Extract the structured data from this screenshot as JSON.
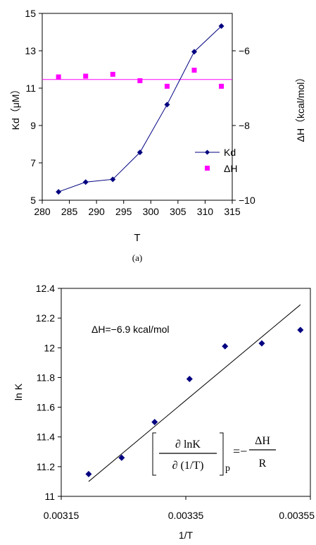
{
  "chart_data": [
    {
      "type": "line",
      "panel_label": "(a)",
      "xlabel": "T",
      "ylabel": "Kd（μM）",
      "y2label": "ΔH（kcal/mol）",
      "xlim": [
        280,
        315
      ],
      "ylim": [
        5,
        15
      ],
      "y2lim": [
        -10,
        -5
      ],
      "xticks": [
        "280",
        "285",
        "290",
        "295",
        "300",
        "305",
        "310",
        "315"
      ],
      "yticks": [
        "5",
        "7",
        "9",
        "11",
        "13",
        "15"
      ],
      "y2ticks": [
        "−10",
        "−8",
        "−6"
      ],
      "legend_position": "lower-right",
      "series": [
        {
          "name": "Kd",
          "axis": "left",
          "color": "#000080",
          "marker": "diamond",
          "line": true,
          "x": [
            283,
            288,
            293,
            298,
            303,
            308,
            313
          ],
          "y": [
            5.45,
            5.97,
            6.12,
            7.56,
            10.12,
            12.95,
            14.32
          ]
        },
        {
          "name": "ΔH",
          "axis": "right",
          "color": "#ff00ff",
          "marker": "square",
          "line": false,
          "x": [
            283,
            288,
            293,
            298,
            303,
            308,
            313
          ],
          "y": [
            -6.7,
            -6.68,
            -6.63,
            -6.8,
            -6.95,
            -6.52,
            -6.95
          ]
        }
      ],
      "reference_lines": [
        {
          "axis": "right",
          "y": -6.77,
          "color": "#ff00ff"
        }
      ]
    },
    {
      "type": "scatter",
      "xlabel": "1/T",
      "ylabel": "ln K",
      "xlim": [
        0.00315,
        0.00355
      ],
      "ylim": [
        11,
        12.4
      ],
      "xticks": [
        "0.00315",
        "0.00335",
        "0.00355"
      ],
      "yticks": [
        "11",
        "11.2",
        "11.4",
        "11.6",
        "11.8",
        "12",
        "12.2",
        "12.4"
      ],
      "series": [
        {
          "color": "#000080",
          "marker": "diamond",
          "x": [
            0.003194,
            0.003247,
            0.0033,
            0.003356,
            0.003413,
            0.003472,
            0.003534
          ],
          "y": [
            11.15,
            11.26,
            11.5,
            11.79,
            12.01,
            12.03,
            12.12
          ]
        }
      ],
      "fit_line": {
        "x": [
          0.003194,
          0.003534
        ],
        "y": [
          11.1,
          12.29
        ],
        "color": "#000000"
      },
      "annotation": "ΔH=−6.9  kcal/mol",
      "equation": {
        "numerator_left": "∂ lnK",
        "denominator_left": "∂ (1/T)",
        "subscript": "p",
        "equals_minus": "=−",
        "numerator_right": "ΔH",
        "denominator_right": "R"
      }
    }
  ]
}
